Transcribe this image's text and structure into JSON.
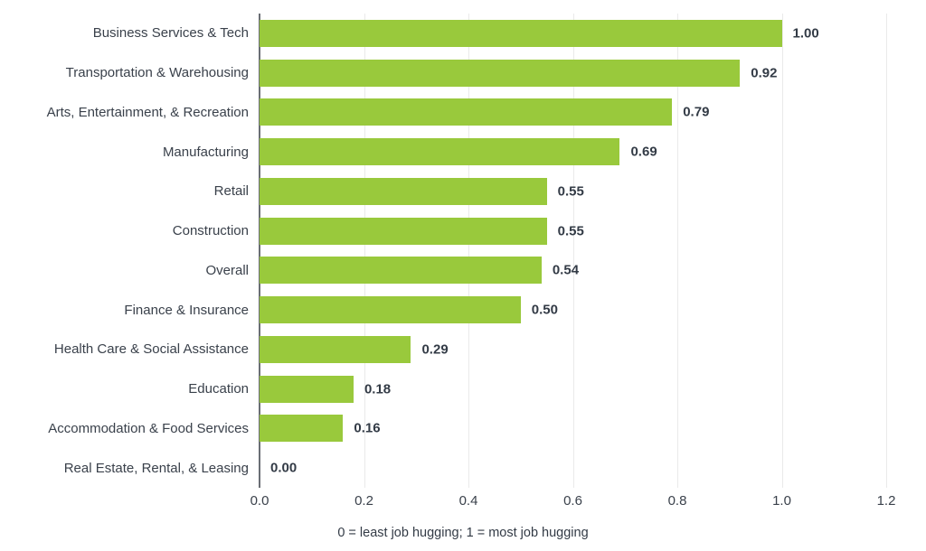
{
  "chart_data": {
    "type": "bar",
    "orientation": "horizontal",
    "categories": [
      "Business Services & Tech",
      "Transportation & Warehousing",
      "Arts, Entertainment, & Recreation",
      "Manufacturing",
      "Retail",
      "Construction",
      "Overall",
      "Finance & Insurance",
      "Health Care & Social Assistance",
      "Education",
      "Accommodation & Food Services",
      "Real Estate, Rental, & Leasing"
    ],
    "values": [
      1.0,
      0.92,
      0.79,
      0.69,
      0.55,
      0.55,
      0.54,
      0.5,
      0.29,
      0.18,
      0.16,
      0.0
    ],
    "value_labels": [
      "1.00",
      "0.92",
      "0.79",
      "0.69",
      "0.55",
      "0.55",
      "0.54",
      "0.50",
      "0.29",
      "0.18",
      "0.16",
      "0.00"
    ],
    "title": "",
    "xlabel": "0 = least job hugging; 1 = most job hugging",
    "ylabel": "",
    "xlim": [
      0,
      1.2
    ],
    "xticks": [
      "0.0",
      "0.2",
      "0.4",
      "0.6",
      "0.8",
      "1.0",
      "1.2"
    ],
    "xtick_values": [
      0.0,
      0.2,
      0.4,
      0.6,
      0.8,
      1.0,
      1.2
    ],
    "grid": "vertical",
    "legend": "none",
    "colors": {
      "bar": "#99c93c",
      "axis_line": "#6a6e74",
      "gridline": "#eaeaea",
      "category_text": "#3a414b",
      "value_text": "#333b46",
      "background": "#ffffff"
    }
  }
}
